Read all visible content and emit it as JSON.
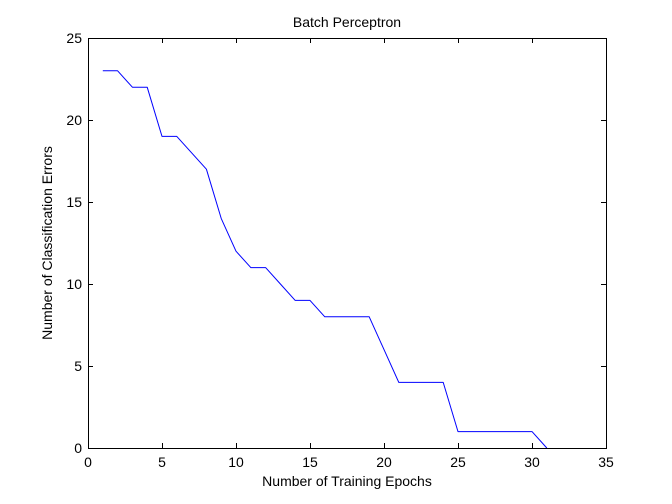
{
  "chart_data": {
    "type": "line",
    "title": "Batch Perceptron",
    "xlabel": "Number of Training Epochs",
    "ylabel": "Number of Classification Errors",
    "xlim": [
      0,
      35
    ],
    "ylim": [
      0,
      25
    ],
    "xticks": [
      0,
      5,
      10,
      15,
      20,
      25,
      30,
      35
    ],
    "yticks": [
      0,
      5,
      10,
      15,
      20,
      25
    ],
    "grid": false,
    "box": true,
    "line_color": "#0000ff",
    "series": [
      {
        "x": [
          1,
          2,
          3,
          4,
          5,
          6,
          7,
          8,
          9,
          10,
          11,
          12,
          13,
          14,
          15,
          16,
          17,
          18,
          19,
          20,
          21,
          22,
          23,
          24,
          25,
          26,
          27,
          28,
          29,
          30,
          31
        ],
        "y": [
          23,
          23,
          22,
          22,
          19,
          19,
          18,
          17,
          14,
          12,
          11,
          11,
          10,
          9,
          9,
          8,
          8,
          8,
          8,
          6,
          4,
          4,
          4,
          4,
          1,
          1,
          1,
          1,
          1,
          1,
          0
        ]
      }
    ]
  }
}
